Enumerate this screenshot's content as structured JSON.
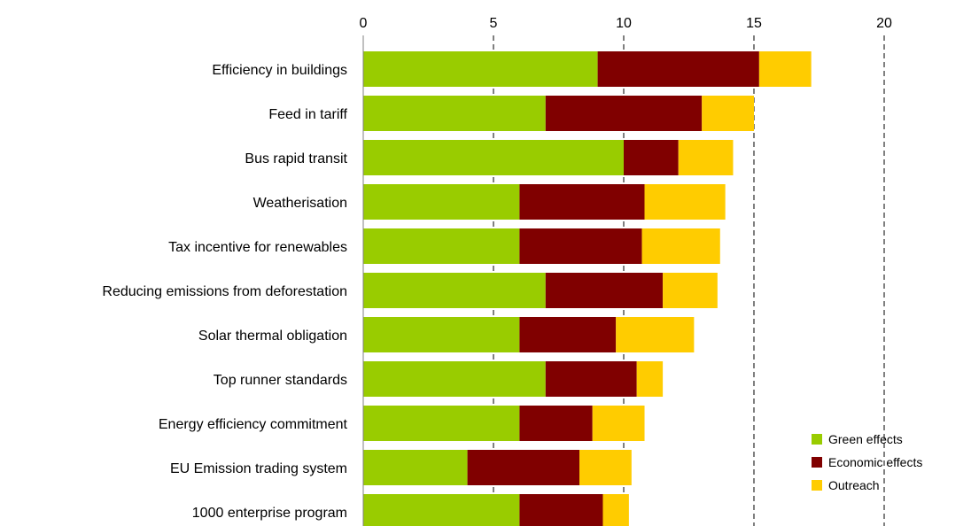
{
  "chart_data": {
    "type": "bar",
    "orientation": "horizontal",
    "stacked": true,
    "categories": [
      "Efficiency in buildings",
      "Feed in tariff",
      "Bus rapid transit",
      "Weatherisation",
      "Tax incentive for renewables",
      "Reducing emissions from deforestation",
      "Solar thermal obligation",
      "Top runner standards",
      "Energy efficiency commitment",
      "EU Emission trading system",
      "1000 enterprise program"
    ],
    "series": [
      {
        "name": "Green effects",
        "color": "#99cc00",
        "values": [
          9,
          7,
          10,
          6,
          6,
          7,
          6,
          7,
          6,
          4,
          6
        ]
      },
      {
        "name": "Economic effects",
        "color": "#800000",
        "values": [
          6.2,
          6,
          2.1,
          4.8,
          4.7,
          4.5,
          3.7,
          3.5,
          2.8,
          4.3,
          3.2
        ]
      },
      {
        "name": "Outreach",
        "color": "#ffcc00",
        "values": [
          2,
          2,
          2.1,
          3.1,
          3,
          2.1,
          3,
          1,
          2,
          2,
          1
        ]
      }
    ],
    "xlim": [
      0,
      20
    ],
    "xticks": [
      "0",
      "5",
      "10",
      "15",
      "20"
    ],
    "x_axis_position": "top",
    "grid": "dashed vertical at 15 and 20",
    "legend_position": "bottom-right",
    "title": "",
    "xlabel": "",
    "ylabel": ""
  }
}
